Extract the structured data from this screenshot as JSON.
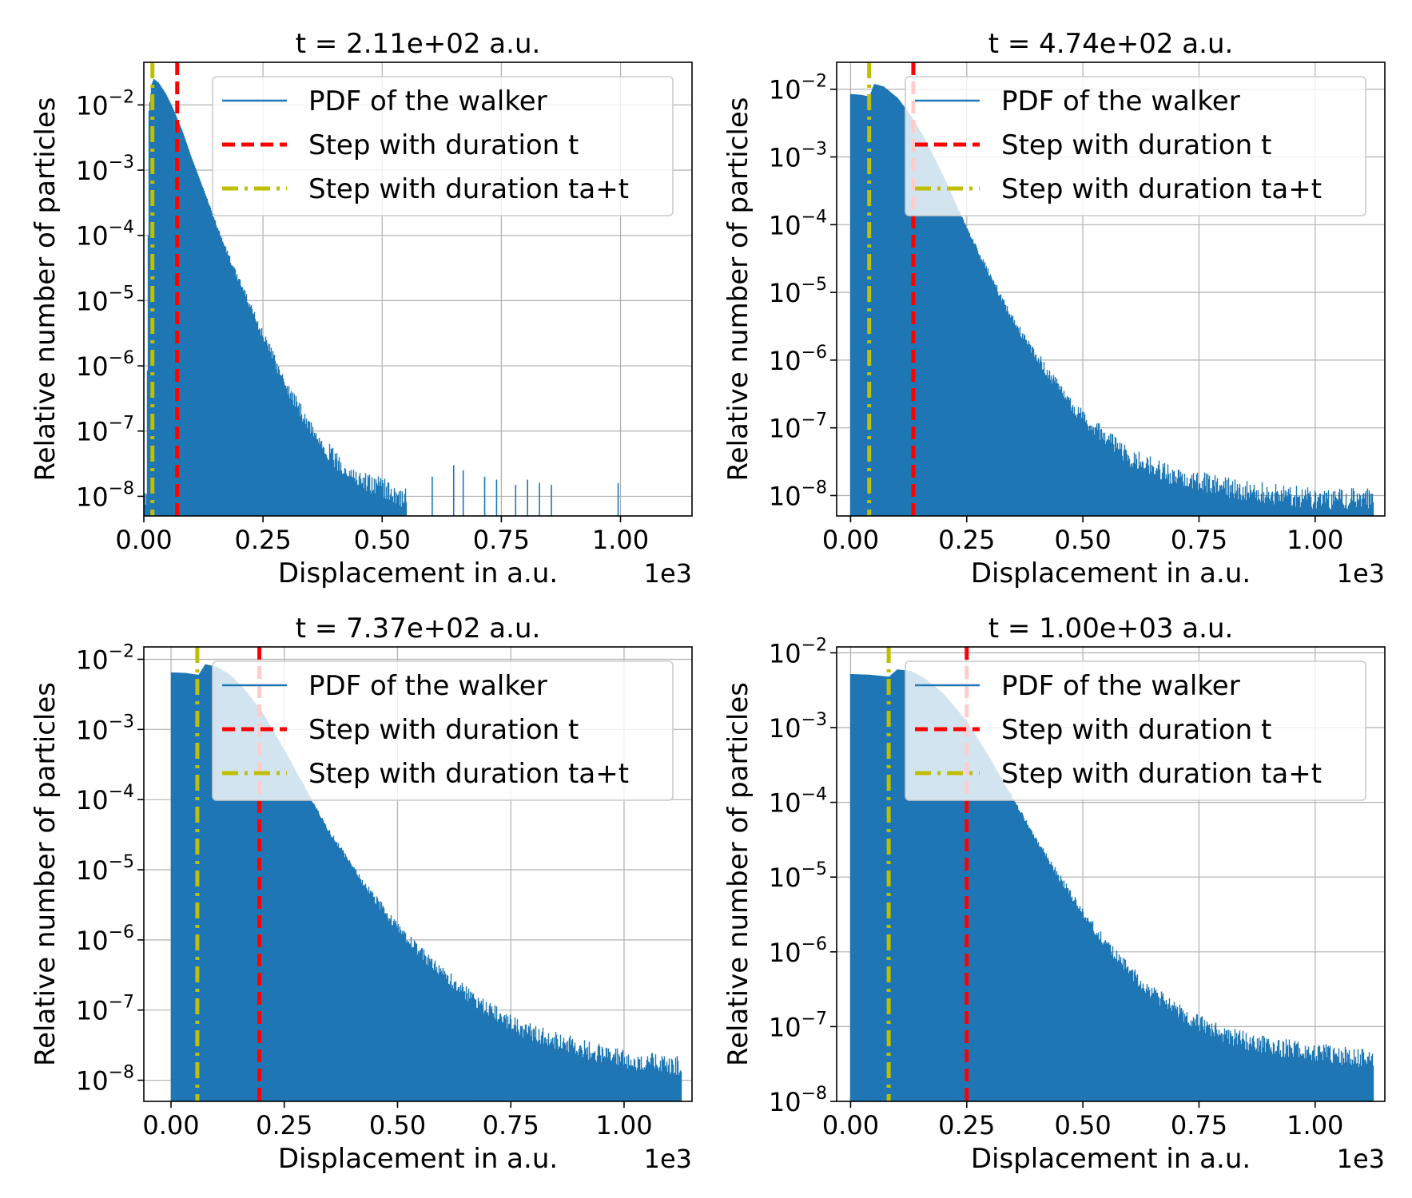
{
  "figure": {
    "legend_labels": [
      "PDF of the walker",
      "Step with duration t",
      "Step with duration ta+t"
    ],
    "colors": {
      "pdf": "#1f77b4",
      "step_t": "#ff0000",
      "step_ta_t": "#bfbf00"
    }
  },
  "chart_data": [
    {
      "type": "area",
      "title": "t = 2.11e+02 a.u.",
      "xlabel": "Displacement in a.u.",
      "ylabel": "Relative number of particles",
      "x_offset_label": "1e3",
      "x_scale": 1000,
      "xlim": [
        0,
        1150
      ],
      "ylim": [
        5e-09,
        0.045
      ],
      "y_scale": "log",
      "grid": true,
      "legend_position": "upper right",
      "x_ticks": [
        0,
        250,
        500,
        750,
        1000
      ],
      "x_tick_labels": [
        "0.00",
        "0.25",
        "0.50",
        "0.75",
        "1.00"
      ],
      "y_tick_exponents": [
        -2,
        -3,
        -4,
        -5,
        -6,
        -7,
        -8
      ],
      "step_t": 70,
      "step_ta_t": 18,
      "series": [
        {
          "name": "PDF of the walker",
          "x": [
            0,
            5,
            10,
            15,
            20,
            30,
            45,
            60,
            80,
            100,
            130,
            160,
            200,
            250,
            300,
            350,
            400,
            450,
            500,
            550
          ],
          "y": [
            1e-08,
            1e-08,
            0.008,
            0.02,
            0.025,
            0.022,
            0.015,
            0.009,
            0.004,
            0.0015,
            0.0004,
            0.0001,
            2e-05,
            3e-06,
            5e-07,
            1.2e-07,
            4e-08,
            2e-08,
            1.5e-08,
            1e-08
          ]
        }
      ],
      "outliers": [
        [
          605,
          2e-08
        ],
        [
          650,
          3e-08
        ],
        [
          670,
          2.5e-08
        ],
        [
          715,
          2e-08
        ],
        [
          740,
          1.8e-08
        ],
        [
          780,
          1.5e-08
        ],
        [
          805,
          1.8e-08
        ],
        [
          830,
          1.6e-08
        ],
        [
          855,
          1.5e-08
        ],
        [
          995,
          1.6e-08
        ]
      ]
    },
    {
      "type": "area",
      "title": "t = 4.74e+02 a.u.",
      "xlabel": "Displacement in a.u.",
      "ylabel": "Relative number of particles",
      "x_offset_label": "1e3",
      "x_scale": 1000,
      "xlim": [
        -30,
        1150
      ],
      "ylim": [
        5e-09,
        0.025
      ],
      "y_scale": "log",
      "grid": true,
      "legend_position": "upper right",
      "x_ticks": [
        0,
        250,
        500,
        750,
        1000
      ],
      "x_tick_labels": [
        "0.00",
        "0.25",
        "0.50",
        "0.75",
        "1.00"
      ],
      "y_tick_exponents": [
        -2,
        -3,
        -4,
        -5,
        -6,
        -7,
        -8
      ],
      "step_t": 135,
      "step_ta_t": 40,
      "series": [
        {
          "name": "PDF of the walker",
          "x": [
            0,
            20,
            40,
            50,
            70,
            100,
            130,
            160,
            200,
            250,
            300,
            350,
            400,
            450,
            500,
            550,
            600,
            650,
            700,
            750,
            800,
            850,
            900,
            950,
            1000,
            1050,
            1100,
            1125
          ],
          "y": [
            0.0085,
            0.0083,
            0.0078,
            0.012,
            0.011,
            0.0075,
            0.004,
            0.0018,
            0.0005,
            9e-05,
            1.8e-05,
            4e-06,
            1.2e-06,
            4e-07,
            1.5e-07,
            8e-08,
            4e-08,
            3e-08,
            2e-08,
            1.8e-08,
            1.5e-08,
            1.3e-08,
            1.2e-08,
            1.1e-08,
            1e-08,
            1e-08,
            1e-08,
            1e-08
          ]
        }
      ],
      "outliers": []
    },
    {
      "type": "area",
      "title": "t = 7.37e+02 a.u.",
      "xlabel": "Displacement in a.u.",
      "ylabel": "Relative number of particles",
      "x_offset_label": "1e3",
      "x_scale": 1000,
      "xlim": [
        -60,
        1150
      ],
      "ylim": [
        5e-09,
        0.015
      ],
      "y_scale": "log",
      "grid": true,
      "legend_position": "upper right",
      "x_ticks": [
        0,
        250,
        500,
        750,
        1000
      ],
      "x_tick_labels": [
        "0.00",
        "0.25",
        "0.50",
        "0.75",
        "1.00"
      ],
      "y_tick_exponents": [
        -2,
        -3,
        -4,
        -5,
        -6,
        -7,
        -8
      ],
      "step_t": 195,
      "step_ta_t": 58,
      "series": [
        {
          "name": "PDF of the walker",
          "x": [
            0,
            30,
            60,
            75,
            100,
            130,
            160,
            200,
            250,
            300,
            350,
            400,
            450,
            500,
            550,
            600,
            650,
            700,
            750,
            800,
            850,
            900,
            950,
            1000,
            1050,
            1100,
            1125
          ],
          "y": [
            0.0065,
            0.0064,
            0.006,
            0.0085,
            0.0078,
            0.006,
            0.0038,
            0.0018,
            0.0005,
            0.00013,
            3.5e-05,
            1.1e-05,
            4e-06,
            1.6e-06,
            7e-07,
            3.5e-07,
            1.9e-07,
            1.1e-07,
            7e-08,
            5e-08,
            4e-08,
            3.2e-08,
            2.6e-08,
            2.2e-08,
            2e-08,
            1.8e-08,
            1.8e-08
          ]
        }
      ],
      "outliers": []
    },
    {
      "type": "area",
      "title": "t = 1.00e+03 a.u.",
      "xlabel": "Displacement in a.u.",
      "ylabel": "Relative number of particles",
      "x_offset_label": "1e3",
      "x_scale": 1000,
      "xlim": [
        -30,
        1150
      ],
      "ylim": [
        1e-08,
        0.012
      ],
      "y_scale": "log",
      "grid": true,
      "legend_position": "upper right",
      "x_ticks": [
        0,
        250,
        500,
        750,
        1000
      ],
      "x_tick_labels": [
        "0.00",
        "0.25",
        "0.50",
        "0.75",
        "1.00"
      ],
      "y_tick_exponents": [
        -2,
        -3,
        -4,
        -5,
        -6,
        -7,
        -8
      ],
      "step_t": 250,
      "step_ta_t": 82,
      "series": [
        {
          "name": "PDF of the walker",
          "x": [
            0,
            40,
            82,
            100,
            130,
            160,
            200,
            250,
            300,
            350,
            400,
            450,
            500,
            550,
            600,
            650,
            700,
            750,
            800,
            850,
            900,
            950,
            1000,
            1050,
            1100,
            1125
          ],
          "y": [
            0.0052,
            0.0051,
            0.0048,
            0.006,
            0.0057,
            0.0045,
            0.0028,
            0.0012,
            0.00038,
            0.00011,
            3.2e-05,
            1e-05,
            3.5e-06,
            1.3e-06,
            6e-07,
            3e-07,
            1.8e-07,
            1.2e-07,
            9e-08,
            7e-08,
            6e-08,
            5.5e-08,
            5e-08,
            4.5e-08,
            4.2e-08,
            4e-08
          ]
        }
      ],
      "outliers": []
    }
  ]
}
